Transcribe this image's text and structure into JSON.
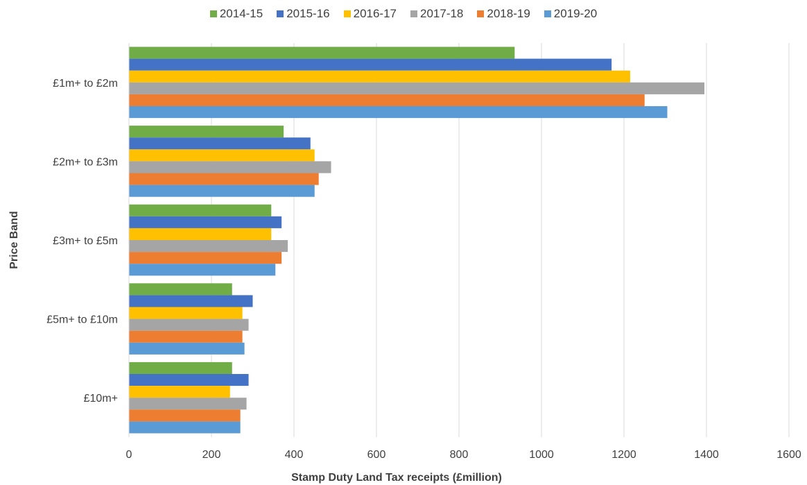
{
  "chart_data": {
    "type": "bar",
    "orientation": "horizontal",
    "categories": [
      "£1m+ to £2m",
      "£2m+ to £3m",
      "£3m+ to £5m",
      "£5m+ to £10m",
      "£10m+"
    ],
    "series": [
      {
        "name": "2014-15",
        "color": "#70AD47",
        "values": [
          935,
          375,
          345,
          250,
          250
        ]
      },
      {
        "name": "2015-16",
        "color": "#4472C4",
        "values": [
          1170,
          440,
          370,
          300,
          290
        ]
      },
      {
        "name": "2016-17",
        "color": "#FFC000",
        "values": [
          1215,
          450,
          345,
          275,
          245
        ]
      },
      {
        "name": "2017-18",
        "color": "#A5A5A5",
        "values": [
          1395,
          490,
          385,
          290,
          285
        ]
      },
      {
        "name": "2018-19",
        "color": "#ED7D31",
        "values": [
          1250,
          460,
          370,
          275,
          270
        ]
      },
      {
        "name": "2019-20",
        "color": "#5B9BD5",
        "values": [
          1305,
          450,
          355,
          280,
          270
        ]
      }
    ],
    "xlabel": "Stamp Duty Land Tax receipts (£million)",
    "ylabel": "Price Band",
    "xlim": [
      0,
      1600
    ],
    "xticks": [
      "0",
      "200",
      "400",
      "600",
      "800",
      "1000",
      "1200",
      "1400",
      "1600"
    ],
    "grid": true,
    "legend_position": "top"
  }
}
